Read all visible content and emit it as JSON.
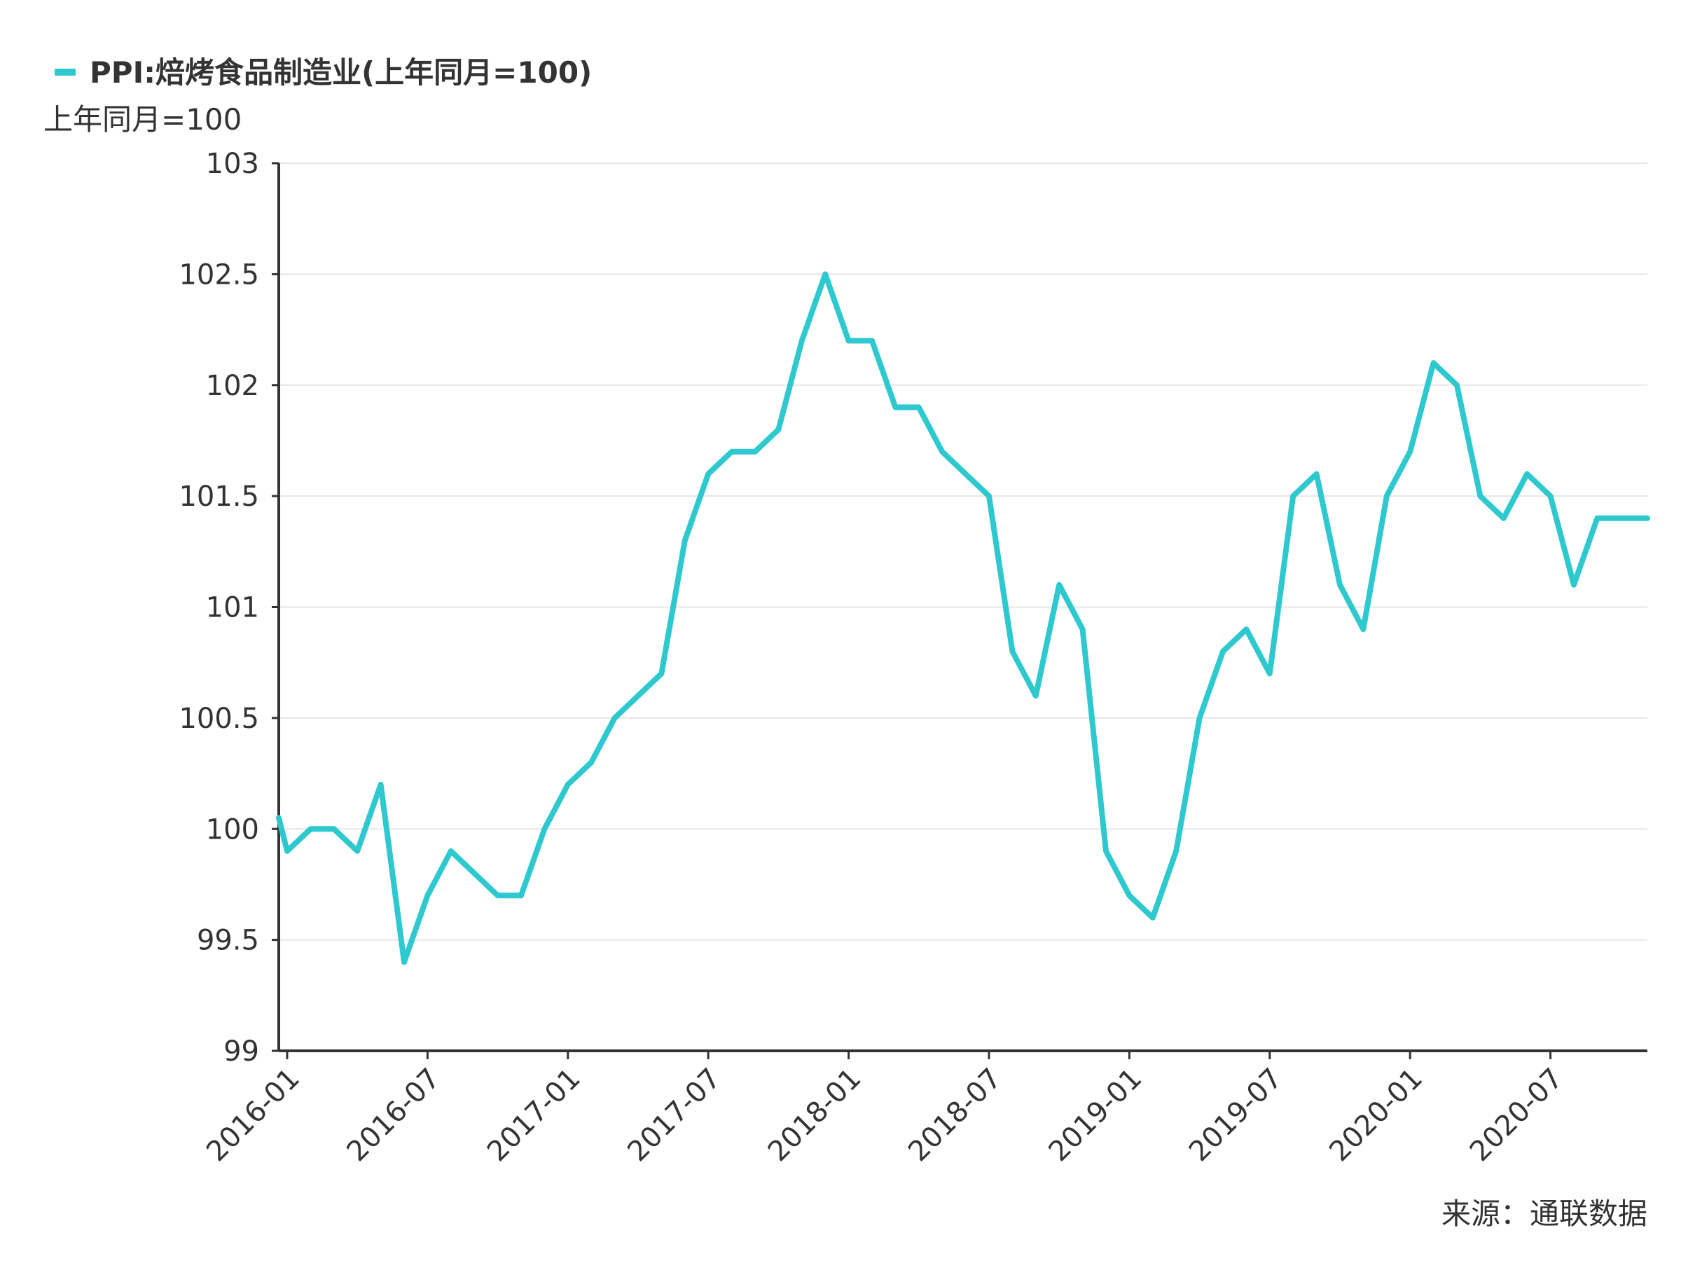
{
  "legend": {
    "label": "PPI:焙烤食品制造业(上年同月=100)"
  },
  "unit_label": "上年同月=100",
  "source": "来源：通联数据",
  "colors": {
    "series": "#2ec9cf",
    "axis": "#333333",
    "grid": "#e6e6e6"
  },
  "chart_data": {
    "type": "line",
    "title": "",
    "xlabel": "",
    "ylabel": "上年同月=100",
    "ylim": [
      99,
      103
    ],
    "yticks": [
      "99",
      "99.5",
      "100",
      "100.5",
      "101",
      "101.5",
      "102",
      "102.5",
      "103"
    ],
    "xticks": [
      "2016-01",
      "2016-07",
      "2017-01",
      "2017-07",
      "2018-01",
      "2018-07",
      "2019-01",
      "2019-07",
      "2020-01",
      "2020-07"
    ],
    "x": [
      "2016-01",
      "2016-02",
      "2016-03",
      "2016-04",
      "2016-05",
      "2016-06",
      "2016-07",
      "2016-08",
      "2016-09",
      "2016-10",
      "2016-11",
      "2016-12",
      "2017-01",
      "2017-02",
      "2017-03",
      "2017-04",
      "2017-05",
      "2017-06",
      "2017-07",
      "2017-08",
      "2017-09",
      "2017-10",
      "2017-11",
      "2017-12",
      "2018-01",
      "2018-02",
      "2018-03",
      "2018-04",
      "2018-05",
      "2018-06",
      "2018-07",
      "2018-08",
      "2018-09",
      "2018-10",
      "2018-11",
      "2018-12",
      "2019-01",
      "2019-02",
      "2019-03",
      "2019-04",
      "2019-05",
      "2019-06",
      "2019-07",
      "2019-08",
      "2019-09",
      "2019-10",
      "2019-11",
      "2019-12",
      "2020-01",
      "2020-02",
      "2020-03",
      "2020-04",
      "2020-05",
      "2020-06",
      "2020-07",
      "2020-08",
      "2020-09",
      "2020-10",
      "2020-11"
    ],
    "series": [
      {
        "name": "PPI:焙烤食品制造业(上年同月=100)",
        "values": [
          99.9,
          100.0,
          100.0,
          99.9,
          100.2,
          99.4,
          99.7,
          99.9,
          99.8,
          99.7,
          99.7,
          100.0,
          100.2,
          100.3,
          100.5,
          100.6,
          100.7,
          101.3,
          101.6,
          101.7,
          101.7,
          101.8,
          102.2,
          102.5,
          102.2,
          102.2,
          101.9,
          101.9,
          101.7,
          101.6,
          101.5,
          100.8,
          100.6,
          101.1,
          100.9,
          99.9,
          99.7,
          99.6,
          99.9,
          100.5,
          100.8,
          100.9,
          100.7,
          101.5,
          101.6,
          101.1,
          100.9,
          101.5,
          101.7,
          102.1,
          102.0,
          101.5,
          101.4,
          101.6,
          101.5,
          101.1,
          101.4,
          101.4,
          101.4
        ]
      }
    ],
    "grid": true,
    "legend_position": "top-left"
  }
}
